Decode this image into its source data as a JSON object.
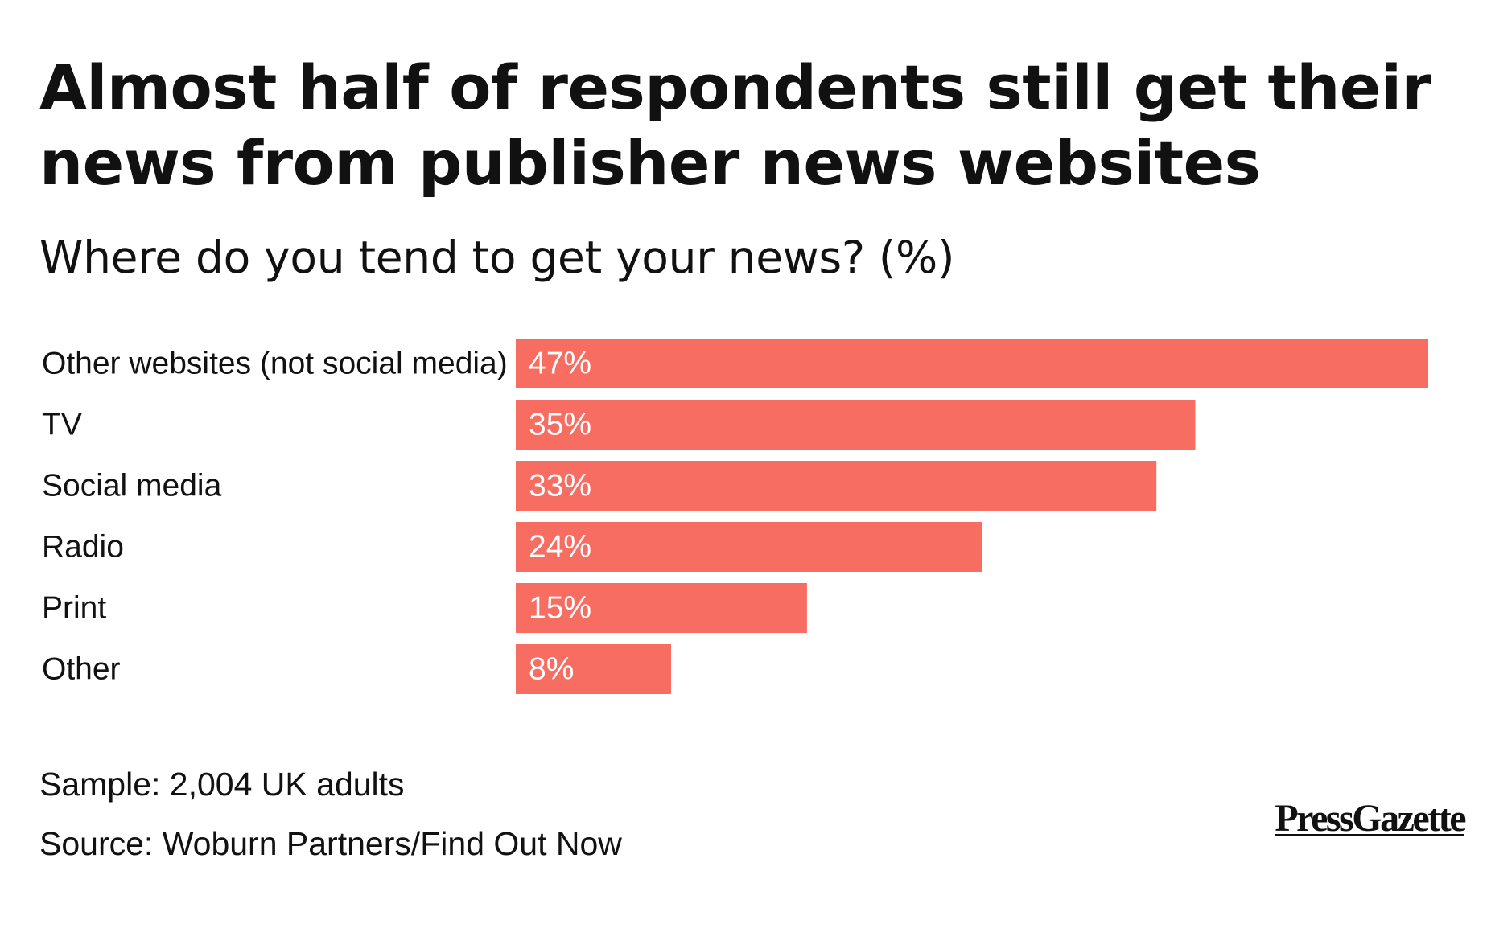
{
  "chart_data": {
    "type": "bar",
    "orientation": "horizontal",
    "title": "Almost half of respondents still get their news from publisher news websites",
    "subtitle": "Where do you tend to get your news? (%)",
    "categories": [
      "Other websites (not social media)",
      "TV",
      "Social media",
      "Radio",
      "Print",
      "Other"
    ],
    "values": [
      47,
      35,
      33,
      24,
      15,
      8
    ],
    "value_labels": [
      "47%",
      "35%",
      "33%",
      "24%",
      "15%",
      "8%"
    ],
    "xlim": [
      0,
      47
    ],
    "grid": false,
    "legend": "none",
    "bar_color": "#f86d62"
  },
  "notes": {
    "sample": "Sample: 2,004 UK adults",
    "source": "Source: Woburn Partners/Find Out Now"
  },
  "branding": {
    "logo_text": "PressGazette"
  }
}
